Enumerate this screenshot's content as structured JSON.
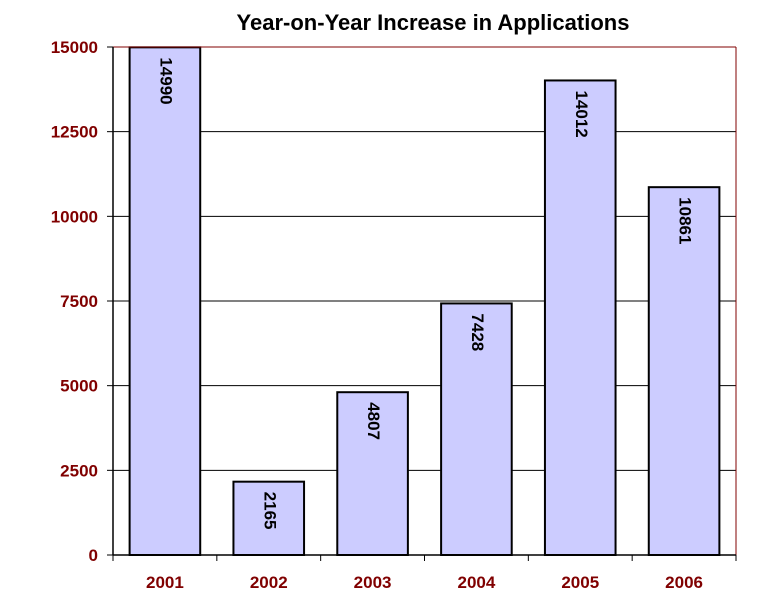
{
  "chart_data": {
    "type": "bar",
    "title": "Year-on-Year Increase in Applications",
    "xlabel": "",
    "ylabel": "",
    "categories": [
      "2001",
      "2002",
      "2003",
      "2004",
      "2005",
      "2006"
    ],
    "values": [
      14990,
      2165,
      4807,
      7428,
      14012,
      10861
    ],
    "data_labels": [
      "14990",
      "2165",
      "4807",
      "7428",
      "14012",
      "10861"
    ],
    "ylim": [
      0,
      15000
    ],
    "yticks": [
      0,
      2500,
      5000,
      7500,
      10000,
      12500,
      15000
    ],
    "ytick_labels": [
      "0",
      "2500",
      "5000",
      "7500",
      "10000",
      "12500",
      "15000"
    ],
    "grid": true,
    "legend": "none",
    "colors": {
      "bar_fill": "#ccccff",
      "bar_stroke": "#000000",
      "axis_label_color": "#800000",
      "frame_color": "#800000",
      "grid_color": "#000000"
    }
  }
}
